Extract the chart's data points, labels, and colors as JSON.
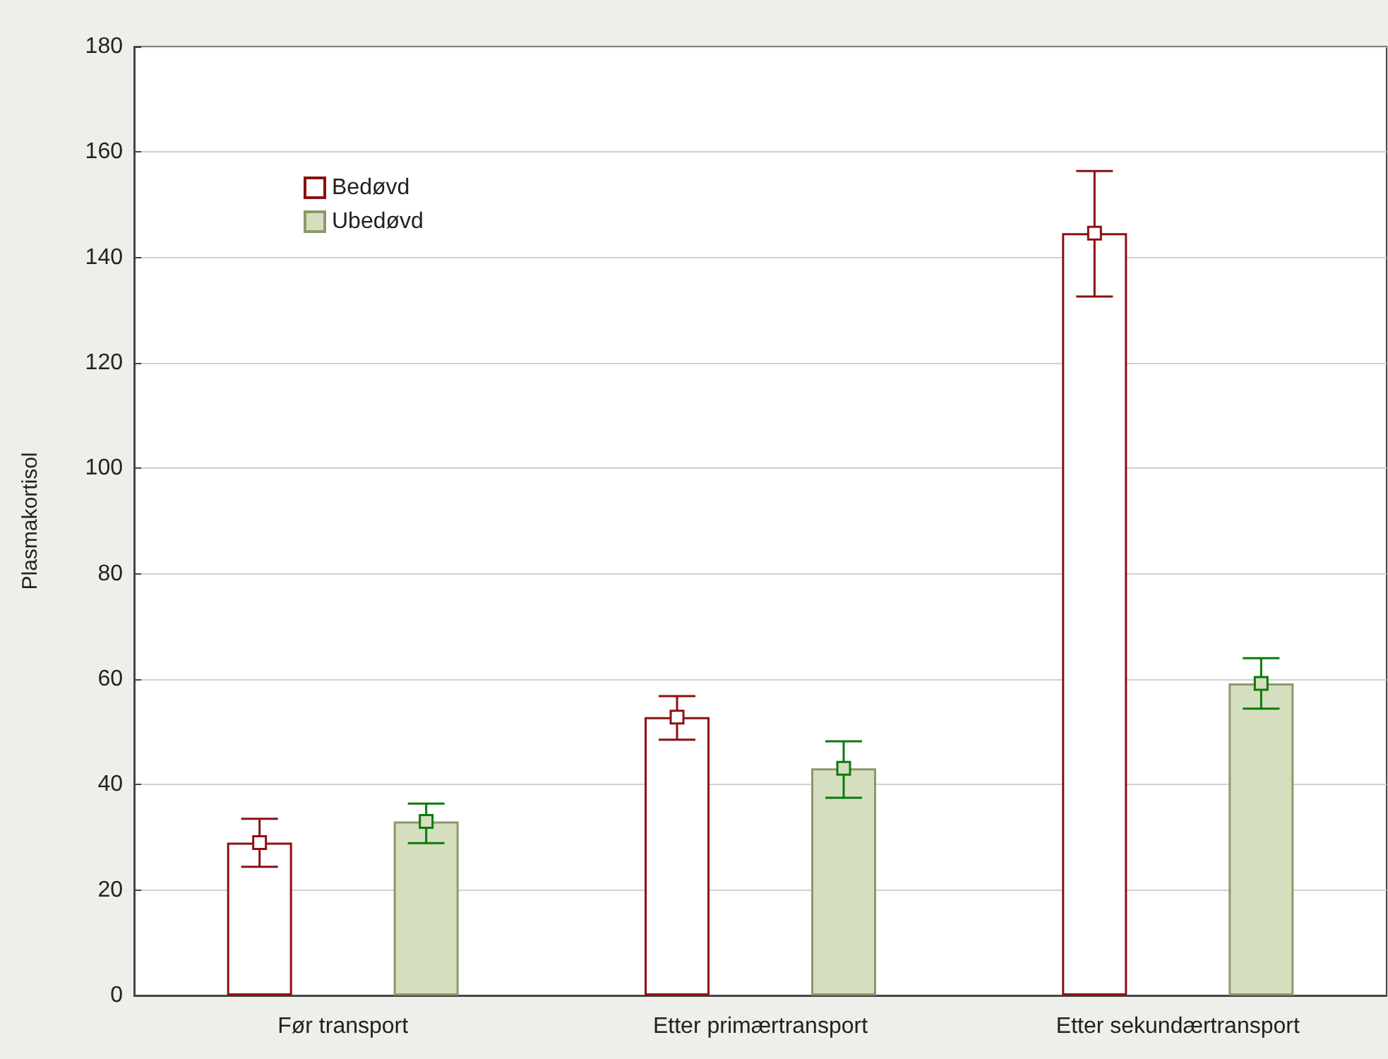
{
  "chart_data": {
    "type": "bar",
    "ylabel": "Plasmakortisol",
    "categories": [
      "Før transport",
      "Etter primærtransport",
      "Etter sekundærtransport"
    ],
    "series": [
      {
        "name": "Bedøvd",
        "color": "#ffffff",
        "values": [
          29,
          52.8,
          144.6
        ],
        "errors": [
          [
            24.4,
            33.5
          ],
          [
            48.5,
            56.8
          ],
          [
            132.6,
            156.4
          ]
        ]
      },
      {
        "name": "Ubedøvd",
        "color": "#d5dfbf",
        "values": [
          33,
          43.1,
          59.2
        ],
        "errors": [
          [
            28.9,
            36.4
          ],
          [
            37.5,
            48.2
          ],
          [
            54.4,
            64
          ]
        ]
      },
      {
        "type": "scatter",
        "color": "#8b1010",
        "x": [
          "Før transport",
          "Etter primærtransport",
          "Etter sekundærtransport"
        ],
        "values": [
          29,
          52.8,
          144.6
        ]
      },
      {
        "type": "scatter",
        "color": "#0a7a0a",
        "x": [
          "Før transport",
          "Etter primærtransport",
          "Etter sekundærtransport"
        ],
        "values": [
          33,
          43.1,
          59.2
        ]
      }
    ],
    "ylim": [
      0,
      180
    ],
    "yticks": [
      0,
      20,
      40,
      60,
      80,
      100,
      120,
      140,
      160,
      180
    ],
    "grid": "y",
    "legend": "top left",
    "marker": "square"
  }
}
